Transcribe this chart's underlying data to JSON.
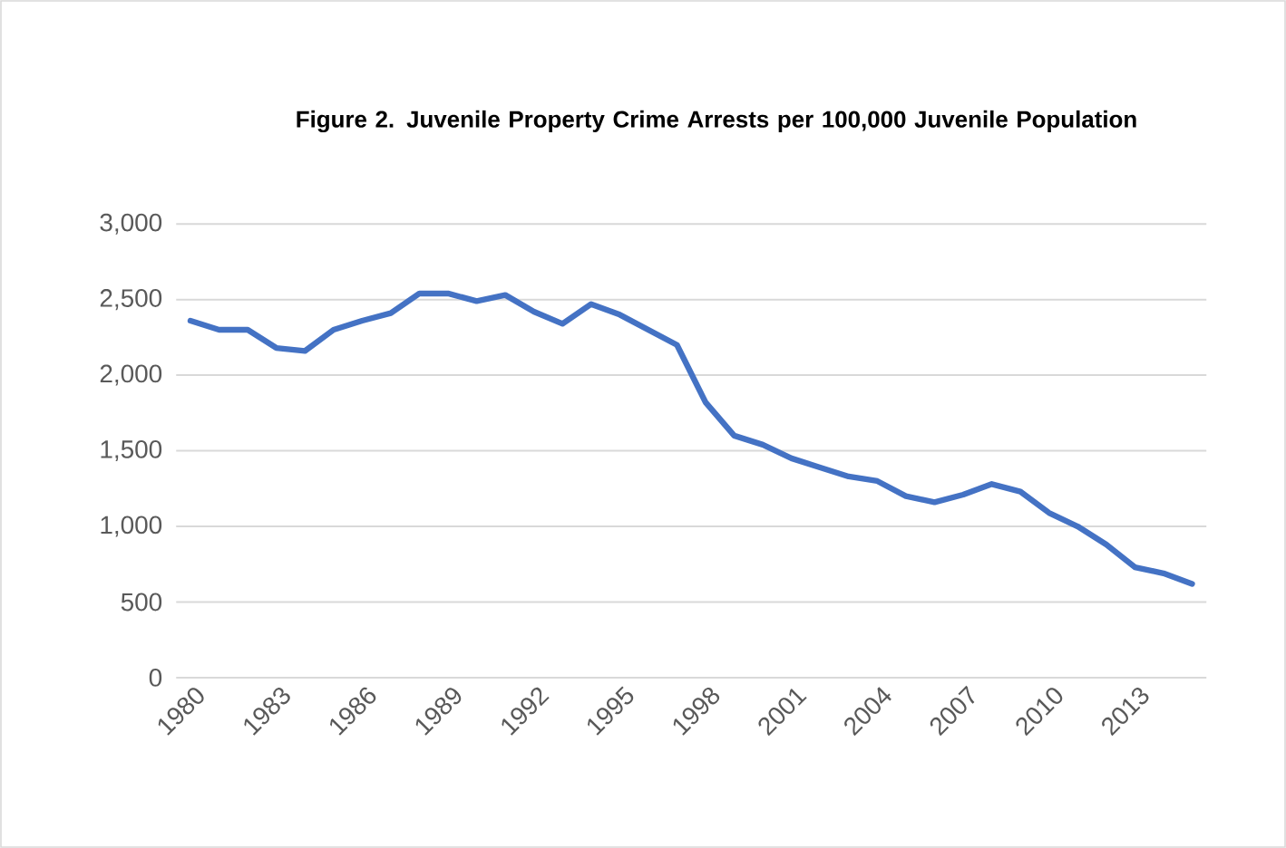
{
  "chart_data": {
    "type": "line",
    "title": "Figure 2. Juvenile Property Crime Arrests per 100,000 Juvenile Population",
    "categories": [
      "1980",
      null,
      null,
      "1983",
      null,
      null,
      "1986",
      null,
      null,
      "1989",
      null,
      null,
      "1992",
      null,
      null,
      "1995",
      null,
      null,
      "1998",
      null,
      null,
      "2001",
      null,
      null,
      "2004",
      null,
      null,
      "2007",
      null,
      null,
      "2010",
      null,
      null,
      "2013",
      null,
      null
    ],
    "series": [
      {
        "color": "#4472c4",
        "values": [
          2360,
          2300,
          2300,
          2180,
          2160,
          2300,
          2360,
          2410,
          2540,
          2540,
          2490,
          2530,
          2420,
          2340,
          2470,
          2400,
          2300,
          2200,
          1820,
          1600,
          1540,
          1450,
          1390,
          1330,
          1300,
          1200,
          1160,
          1210,
          1280,
          1230,
          1090,
          1000,
          880,
          730,
          690,
          620
        ]
      }
    ],
    "ylim": [
      0,
      3000
    ],
    "yticks": [
      0,
      500,
      {
        "value": 1000,
        "label": "1,000"
      },
      {
        "value": 1500,
        "label": "1,500"
      },
      {
        "value": 2000,
        "label": "2,000"
      },
      {
        "value": 2500,
        "label": "2,500"
      },
      {
        "value": 3000,
        "label": "3,000"
      }
    ],
    "grid": "y"
  }
}
